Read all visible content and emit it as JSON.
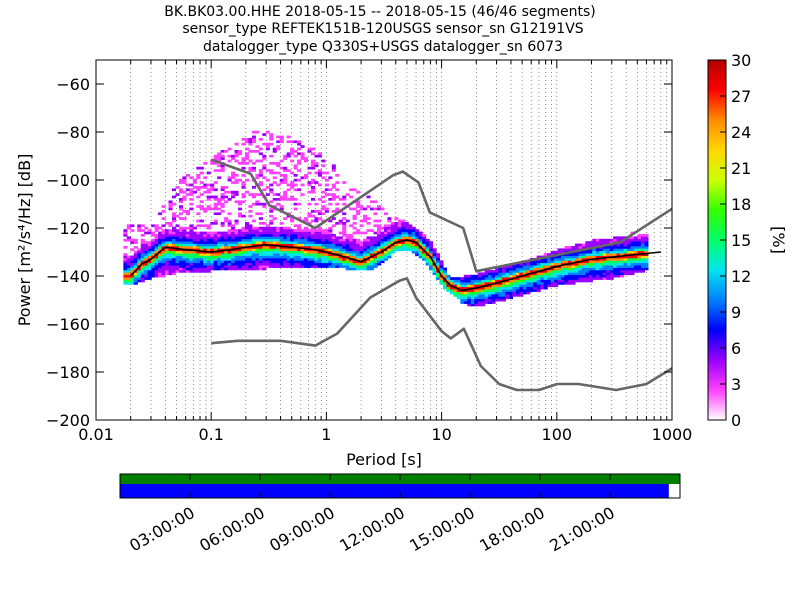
{
  "chart_data": {
    "type": "heatmap",
    "title_lines": [
      "BK.BK03.00.HHE   2018-05-15 -- 2018-05-15  (46/46 segments)",
      "sensor_type REFTEK151B-120USGS sensor_sn G12191VS",
      "datalogger_type Q330S+USGS datalogger_sn 6073"
    ],
    "xlabel": "Period [s]",
    "ylabel": "Power [m²/s⁴/Hz] [dB]",
    "xscale": "log",
    "xlim": [
      0.01,
      1000
    ],
    "ylim": [
      -200,
      -50
    ],
    "x_ticks": [
      0.01,
      0.1,
      1,
      10,
      100,
      1000
    ],
    "x_tick_labels": [
      "0.01",
      "0.1",
      "1",
      "10",
      "100",
      "1000"
    ],
    "y_ticks": [
      -200,
      -180,
      -160,
      -140,
      -120,
      -100,
      -80,
      -60
    ],
    "y_tick_labels": [
      "−200",
      "−180",
      "−160",
      "−140",
      "−120",
      "−100",
      "−80",
      "−60"
    ],
    "colorbar": {
      "label": "[%]",
      "range": [
        0,
        30
      ],
      "ticks": [
        0,
        3,
        6,
        9,
        12,
        15,
        18,
        21,
        24,
        27,
        30
      ],
      "tick_labels": [
        "0",
        "3",
        "6",
        "9",
        "12",
        "15",
        "18",
        "21",
        "24",
        "27",
        "30"
      ]
    },
    "series": [
      {
        "role": "noise-model-high",
        "color": "#666666",
        "points": [
          [
            0.1,
            -91.5
          ],
          [
            0.22,
            -97.4
          ],
          [
            0.32,
            -110.5
          ],
          [
            0.8,
            -120
          ],
          [
            3.8,
            -98
          ],
          [
            4.6,
            -96.5
          ],
          [
            6.3,
            -101
          ],
          [
            7.9,
            -113.5
          ],
          [
            15.4,
            -120
          ],
          [
            20,
            -138
          ],
          [
            354,
            -126
          ],
          [
            1000,
            -112
          ]
        ]
      },
      {
        "role": "noise-model-low",
        "color": "#666666",
        "points": [
          [
            0.1,
            -168
          ],
          [
            0.17,
            -167
          ],
          [
            0.4,
            -167
          ],
          [
            0.8,
            -169
          ],
          [
            1.24,
            -164
          ],
          [
            2.4,
            -149
          ],
          [
            4.3,
            -142
          ],
          [
            5,
            -141
          ],
          [
            6,
            -149
          ],
          [
            10,
            -163
          ],
          [
            12,
            -166
          ],
          [
            15.6,
            -162
          ],
          [
            21.9,
            -177.5
          ],
          [
            31.6,
            -185
          ],
          [
            45,
            -187.5
          ],
          [
            70,
            -187.5
          ],
          [
            101,
            -185
          ],
          [
            154,
            -185
          ],
          [
            328,
            -187.5
          ],
          [
            600,
            -185
          ],
          [
            1000,
            -178.5
          ]
        ]
      },
      {
        "role": "mode",
        "color": "#000000",
        "points": [
          [
            0.02,
            -140
          ],
          [
            0.025,
            -135
          ],
          [
            0.03,
            -133
          ],
          [
            0.04,
            -128
          ],
          [
            0.06,
            -129
          ],
          [
            0.1,
            -130
          ],
          [
            0.15,
            -129
          ],
          [
            0.2,
            -128
          ],
          [
            0.3,
            -127
          ],
          [
            0.5,
            -128
          ],
          [
            0.8,
            -129
          ],
          [
            1.2,
            -131
          ],
          [
            2,
            -134
          ],
          [
            3,
            -130
          ],
          [
            4,
            -126
          ],
          [
            5,
            -125
          ],
          [
            6,
            -126
          ],
          [
            8,
            -132
          ],
          [
            10,
            -140
          ],
          [
            12,
            -144
          ],
          [
            15,
            -146
          ],
          [
            20,
            -145
          ],
          [
            30,
            -143
          ],
          [
            50,
            -140
          ],
          [
            100,
            -136
          ],
          [
            200,
            -133
          ],
          [
            500,
            -131
          ],
          [
            800,
            -130
          ]
        ]
      },
      {
        "role": "max-envelope",
        "points": [
          [
            0.03,
            -119
          ],
          [
            0.05,
            -101
          ],
          [
            0.1,
            -92
          ],
          [
            0.2,
            -80
          ],
          [
            0.3,
            -80
          ],
          [
            0.5,
            -83
          ],
          [
            1,
            -91
          ],
          [
            1.6,
            -103
          ],
          [
            3,
            -111
          ],
          [
            5,
            -118
          ],
          [
            8,
            -126
          ],
          [
            12,
            -142
          ],
          [
            20,
            -140
          ],
          [
            50,
            -135
          ],
          [
            100,
            -130
          ],
          [
            300,
            -124
          ],
          [
            600,
            -122
          ]
        ]
      },
      {
        "role": "min-envelope",
        "points": [
          [
            0.02,
            -143
          ],
          [
            0.03,
            -140
          ],
          [
            0.05,
            -138
          ],
          [
            0.1,
            -137
          ],
          [
            0.3,
            -136
          ],
          [
            0.8,
            -135
          ],
          [
            1.5,
            -136
          ],
          [
            2.5,
            -137
          ],
          [
            4,
            -129
          ],
          [
            5,
            -128
          ],
          [
            7,
            -132
          ],
          [
            10,
            -143
          ],
          [
            15,
            -150
          ],
          [
            20,
            -152
          ],
          [
            30,
            -150
          ],
          [
            50,
            -147
          ],
          [
            100,
            -143
          ],
          [
            300,
            -140
          ],
          [
            600,
            -137
          ]
        ]
      }
    ],
    "colormap": [
      "#ffffff",
      "#ff40ff",
      "#9900ff",
      "#0000ff",
      "#0080ff",
      "#00e5ee",
      "#00ff66",
      "#33ff00",
      "#ccff00",
      "#ffd700",
      "#ff8c00",
      "#ff0000",
      "#b30000"
    ]
  },
  "timeline": {
    "tick_labels": [
      "03:00:00",
      "06:00:00",
      "09:00:00",
      "12:00:00",
      "15:00:00",
      "18:00:00",
      "21:00:00"
    ],
    "data_coverage_fraction": 0.98,
    "top_color": "#008000",
    "bottom_color": "#0000ff"
  }
}
